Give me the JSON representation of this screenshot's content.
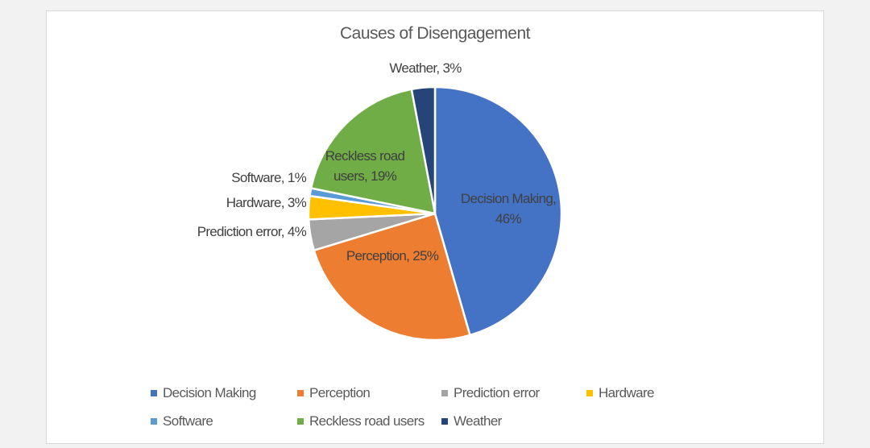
{
  "chart_data": {
    "type": "pie",
    "title": "Causes of Disengagement",
    "slices": [
      {
        "name": "Decision Making",
        "value": 46,
        "label": "Decision Making, 46%",
        "color": "#4472c4"
      },
      {
        "name": "Perception",
        "value": 25,
        "label": "Perception, 25%",
        "color": "#ed7d31"
      },
      {
        "name": "Prediction error",
        "value": 4,
        "label": "Prediction error, 4%",
        "color": "#a5a5a5"
      },
      {
        "name": "Hardware",
        "value": 3,
        "label": "Hardware, 3%",
        "color": "#ffc000"
      },
      {
        "name": "Software",
        "value": 1,
        "label": "Software, 1%",
        "color": "#5b9bd5"
      },
      {
        "name": "Reckless road users",
        "value": 19,
        "label": "Reckless road users, 19%",
        "color": "#70ad47"
      },
      {
        "name": "Weather",
        "value": 3,
        "label": "Weather, 3%",
        "color": "#264478"
      }
    ],
    "legend_position": "bottom"
  }
}
